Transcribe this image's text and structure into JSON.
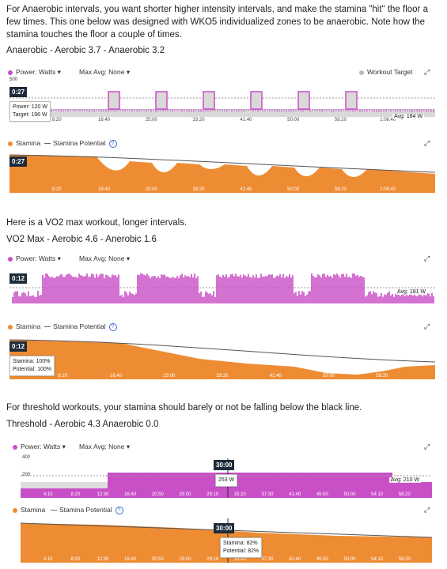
{
  "intro": {
    "text": "For Anaerobic intervals, you want shorter higher intensity intervals, and make the stamina \"hit\" the floor a few times. This one below was designed with WKO5 individualized zones to be anaerobic. Note how the stamina touches the floor a couple of times."
  },
  "sections": [
    {
      "title": "Anaerobic - Aerobic 3.7 - Anaerobic 3.2",
      "power_legend": "Power: Watts ▾",
      "maxavg": "Max Avg: None ▾",
      "target_legend": "Workout Target",
      "power_ymax": "500",
      "power_ymid": "",
      "power_badge": "0:27",
      "power_tip_1": "Power: 120 W",
      "power_tip_2": "Target: 196 W",
      "avg_label": "Avg: 184 W",
      "stamina_legend": "Stamina",
      "potential_legend": "Stamina Potential",
      "stamina_badge": "0:27",
      "stamina_tip_1": "",
      "stamina_tip_2": "",
      "power_ticks": [
        "8:20",
        "16:40",
        "25:00",
        "33:20",
        "41:40",
        "50:00",
        "58:20",
        "1:06:40"
      ],
      "stamina_ticks": [
        "8:20",
        "16:40",
        "25:00",
        "33:20",
        "41:40",
        "50:00",
        "58:20",
        "1:06:40"
      ]
    },
    {
      "title": "VO2 Max - Aerobic 4.6 - Anerobic 1.6",
      "power_legend": "Power: Watts ▾",
      "maxavg": "Max Avg: None ▾",
      "target_legend": "",
      "power_ymax": "",
      "power_ymid": "",
      "power_badge": "0:12",
      "power_tip_1": "",
      "power_tip_2": "",
      "avg_label": "Avg: 181 W",
      "stamina_legend": "Stamina",
      "potential_legend": "Stamina Potential",
      "stamina_badge": "0:12",
      "stamina_tip_1": "Stamina: 100%",
      "stamina_tip_2": "Potential: 100%",
      "power_ticks": [
        "8:20",
        "16:40",
        "25:00",
        "33:20",
        "41:40",
        "50:00",
        "58:20"
      ],
      "stamina_ticks": [
        "8:20",
        "16:40",
        "25:00",
        "33:20",
        "41:40",
        "50:00",
        "58:20"
      ]
    },
    {
      "title": "Threshold - Aerobic 4.3 Anaerobic 0.0",
      "power_legend": "Power: Watts ▾",
      "maxavg": "Max Avg: None ▾",
      "target_legend": "",
      "power_ymax": "400",
      "power_ymid": "200",
      "power_badge": "30:00",
      "power_tip_1": "253 W",
      "power_tip_2": "",
      "avg_label": "Avg: 210 W",
      "stamina_legend": "Stamina",
      "potential_legend": "Stamina Potential",
      "stamina_badge": "30:00",
      "stamina_tip_1": "Stamina: 82%",
      "stamina_tip_2": "Potential: 82%",
      "power_ticks": [
        "4:10",
        "8:20",
        "12:30",
        "16:40",
        "20:50",
        "25:00",
        "29:10",
        "33:20",
        "37:30",
        "41:40",
        "45:50",
        "50:00",
        "54:10",
        "58:20"
      ],
      "stamina_ticks": [
        "4:10",
        "8:20",
        "12:30",
        "16:40",
        "20:50",
        "25:00",
        "29:10",
        "33:20",
        "37:30",
        "41:40",
        "45:50",
        "50:00",
        "54:10",
        "58:20"
      ]
    }
  ],
  "text_vo2": "Here is a VO2 max workout, longer intervals.",
  "text_threshold": "For threshold workouts, your stamina should barely or not be falling below the black line.",
  "icons": {
    "expand": "expand-icon",
    "info": "info-icon",
    "legend": "dot-icon"
  },
  "colors": {
    "power": "#c94fc7",
    "stamina": "#ee8c34",
    "badge": "#1d2b3a",
    "target": "#bbbbbb"
  }
}
